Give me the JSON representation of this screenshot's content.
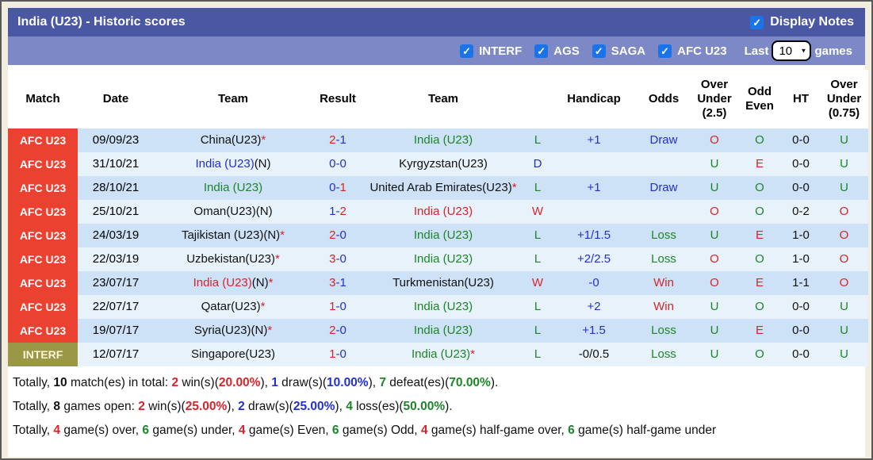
{
  "palette": {
    "title_bar_bg": "#4a58a3",
    "filter_bar_bg": "#7d88c6",
    "afc_label_bg": "#ea4130",
    "interf_label_bg": "#9a9746",
    "row_dark_bg": "#cde2f6",
    "row_light_bg": "#e7f2fb",
    "checkbox_blue": "#1a73e8",
    "text_red": "#d9232a",
    "text_blue": "#2330cc",
    "text_green": "#1d8527",
    "outer_bg": "#f1eee0"
  },
  "title_bar": {
    "title": "India (U23) - Historic scores",
    "display_notes_label": "Display Notes",
    "display_notes_checked": true
  },
  "filter_bar": {
    "checkboxes": [
      {
        "label": "INTERF",
        "checked": true
      },
      {
        "label": "AGS",
        "checked": true
      },
      {
        "label": "SAGA",
        "checked": true
      },
      {
        "label": "AFC U23",
        "checked": true
      }
    ],
    "last_label": "Last",
    "games_count": "10",
    "games_label": "games",
    "check_glyph": "✓",
    "chevron_glyph": "▼"
  },
  "table": {
    "headers": [
      {
        "key": "match",
        "label": "Match"
      },
      {
        "key": "date",
        "label": "Date"
      },
      {
        "key": "team-home",
        "label": "Team"
      },
      {
        "key": "result",
        "label": "Result"
      },
      {
        "key": "team-away",
        "label": "Team"
      },
      {
        "key": "result-letter",
        "label": ""
      },
      {
        "key": "handicap",
        "label": "Handicap"
      },
      {
        "key": "odds",
        "label": "Odds"
      },
      {
        "key": "over-under-25",
        "label": "Over Under (2.5)"
      },
      {
        "key": "odd-even",
        "label": "Odd Even"
      },
      {
        "key": "ht",
        "label": "HT"
      },
      {
        "key": "over-under-075",
        "label": "Over Under (0.75)"
      }
    ],
    "rows": [
      {
        "competition": "AFC U23",
        "type": "afc",
        "shade": "dark",
        "date": "09/09/23",
        "home": [
          {
            "t": "China(U23)",
            "c": "black"
          },
          {
            "t": "*",
            "c": "red"
          }
        ],
        "score": [
          {
            "t": "2",
            "c": "red"
          },
          {
            "t": "-1",
            "c": "blue"
          }
        ],
        "away": [
          {
            "t": "India (U23)",
            "c": "green"
          }
        ],
        "letter": {
          "t": "L",
          "c": "green"
        },
        "handicap": {
          "t": "+1",
          "c": "blue"
        },
        "odds": {
          "t": "Draw",
          "c": "blue"
        },
        "ou25": {
          "t": "O",
          "c": "red"
        },
        "oddEven": {
          "t": "O",
          "c": "green"
        },
        "ht": {
          "t": "0-0",
          "c": "black"
        },
        "ou075": {
          "t": "U",
          "c": "green"
        }
      },
      {
        "competition": "AFC U23",
        "type": "afc",
        "shade": "light",
        "date": "31/10/21",
        "home": [
          {
            "t": "India (U23)",
            "c": "blue"
          },
          {
            "t": "(N)",
            "c": "black"
          }
        ],
        "score": [
          {
            "t": "0-0",
            "c": "blue"
          }
        ],
        "away": [
          {
            "t": "Kyrgyzstan(U23)",
            "c": "black"
          }
        ],
        "letter": {
          "t": "D",
          "c": "blue"
        },
        "handicap": {
          "t": "",
          "c": "black"
        },
        "odds": {
          "t": "",
          "c": "black"
        },
        "ou25": {
          "t": "U",
          "c": "green"
        },
        "oddEven": {
          "t": "E",
          "c": "red"
        },
        "ht": {
          "t": "0-0",
          "c": "black"
        },
        "ou075": {
          "t": "U",
          "c": "green"
        }
      },
      {
        "competition": "AFC U23",
        "type": "afc",
        "shade": "dark",
        "date": "28/10/21",
        "home": [
          {
            "t": "India (U23)",
            "c": "green"
          }
        ],
        "score": [
          {
            "t": "0-",
            "c": "blue"
          },
          {
            "t": "1",
            "c": "red"
          }
        ],
        "away": [
          {
            "t": "United Arab Emirates(U23)",
            "c": "black"
          },
          {
            "t": "*",
            "c": "red"
          }
        ],
        "letter": {
          "t": "L",
          "c": "green"
        },
        "handicap": {
          "t": "+1",
          "c": "blue"
        },
        "odds": {
          "t": "Draw",
          "c": "blue"
        },
        "ou25": {
          "t": "U",
          "c": "green"
        },
        "oddEven": {
          "t": "O",
          "c": "green"
        },
        "ht": {
          "t": "0-0",
          "c": "black"
        },
        "ou075": {
          "t": "U",
          "c": "green"
        }
      },
      {
        "competition": "AFC U23",
        "type": "afc",
        "shade": "light",
        "date": "25/10/21",
        "home": [
          {
            "t": "Oman(U23)(N)",
            "c": "black"
          }
        ],
        "score": [
          {
            "t": "1-",
            "c": "blue"
          },
          {
            "t": "2",
            "c": "red"
          }
        ],
        "away": [
          {
            "t": "India (U23)",
            "c": "red"
          }
        ],
        "letter": {
          "t": "W",
          "c": "red"
        },
        "handicap": {
          "t": "",
          "c": "black"
        },
        "odds": {
          "t": "",
          "c": "black"
        },
        "ou25": {
          "t": "O",
          "c": "red"
        },
        "oddEven": {
          "t": "O",
          "c": "green"
        },
        "ht": {
          "t": "0-2",
          "c": "black"
        },
        "ou075": {
          "t": "O",
          "c": "red"
        }
      },
      {
        "competition": "AFC U23",
        "type": "afc",
        "shade": "dark",
        "date": "24/03/19",
        "home": [
          {
            "t": "Tajikistan (U23)(N)",
            "c": "black"
          },
          {
            "t": "*",
            "c": "red"
          }
        ],
        "score": [
          {
            "t": "2",
            "c": "red"
          },
          {
            "t": "-0",
            "c": "blue"
          }
        ],
        "away": [
          {
            "t": "India (U23)",
            "c": "green"
          }
        ],
        "letter": {
          "t": "L",
          "c": "green"
        },
        "handicap": {
          "t": "+1/1.5",
          "c": "blue"
        },
        "odds": {
          "t": "Loss",
          "c": "green"
        },
        "ou25": {
          "t": "U",
          "c": "green"
        },
        "oddEven": {
          "t": "E",
          "c": "red"
        },
        "ht": {
          "t": "1-0",
          "c": "black"
        },
        "ou075": {
          "t": "O",
          "c": "red"
        }
      },
      {
        "competition": "AFC U23",
        "type": "afc",
        "shade": "light",
        "date": "22/03/19",
        "home": [
          {
            "t": "Uzbekistan(U23)",
            "c": "black"
          },
          {
            "t": "*",
            "c": "red"
          }
        ],
        "score": [
          {
            "t": "3",
            "c": "red"
          },
          {
            "t": "-0",
            "c": "blue"
          }
        ],
        "away": [
          {
            "t": "India (U23)",
            "c": "green"
          }
        ],
        "letter": {
          "t": "L",
          "c": "green"
        },
        "handicap": {
          "t": "+2/2.5",
          "c": "blue"
        },
        "odds": {
          "t": "Loss",
          "c": "green"
        },
        "ou25": {
          "t": "O",
          "c": "red"
        },
        "oddEven": {
          "t": "O",
          "c": "green"
        },
        "ht": {
          "t": "1-0",
          "c": "black"
        },
        "ou075": {
          "t": "O",
          "c": "red"
        }
      },
      {
        "competition": "AFC U23",
        "type": "afc",
        "shade": "dark",
        "date": "23/07/17",
        "home": [
          {
            "t": "India (U23)",
            "c": "red"
          },
          {
            "t": "(N)",
            "c": "black"
          },
          {
            "t": "*",
            "c": "red"
          }
        ],
        "score": [
          {
            "t": "3",
            "c": "red"
          },
          {
            "t": "-1",
            "c": "blue"
          }
        ],
        "away": [
          {
            "t": "Turkmenistan(U23)",
            "c": "black"
          }
        ],
        "letter": {
          "t": "W",
          "c": "red"
        },
        "handicap": {
          "t": "-0",
          "c": "blue"
        },
        "odds": {
          "t": "Win",
          "c": "red"
        },
        "ou25": {
          "t": "O",
          "c": "red"
        },
        "oddEven": {
          "t": "E",
          "c": "red"
        },
        "ht": {
          "t": "1-1",
          "c": "black"
        },
        "ou075": {
          "t": "O",
          "c": "red"
        }
      },
      {
        "competition": "AFC U23",
        "type": "afc",
        "shade": "light",
        "date": "22/07/17",
        "home": [
          {
            "t": "Qatar(U23)",
            "c": "black"
          },
          {
            "t": "*",
            "c": "red"
          }
        ],
        "score": [
          {
            "t": "1",
            "c": "red"
          },
          {
            "t": "-0",
            "c": "blue"
          }
        ],
        "away": [
          {
            "t": "India (U23)",
            "c": "green"
          }
        ],
        "letter": {
          "t": "L",
          "c": "green"
        },
        "handicap": {
          "t": "+2",
          "c": "blue"
        },
        "odds": {
          "t": "Win",
          "c": "red"
        },
        "ou25": {
          "t": "U",
          "c": "green"
        },
        "oddEven": {
          "t": "O",
          "c": "green"
        },
        "ht": {
          "t": "0-0",
          "c": "black"
        },
        "ou075": {
          "t": "U",
          "c": "green"
        }
      },
      {
        "competition": "AFC U23",
        "type": "afc",
        "shade": "dark",
        "date": "19/07/17",
        "home": [
          {
            "t": "Syria(U23)(N)",
            "c": "black"
          },
          {
            "t": "*",
            "c": "red"
          }
        ],
        "score": [
          {
            "t": "2",
            "c": "red"
          },
          {
            "t": "-0",
            "c": "blue"
          }
        ],
        "away": [
          {
            "t": "India (U23)",
            "c": "green"
          }
        ],
        "letter": {
          "t": "L",
          "c": "green"
        },
        "handicap": {
          "t": "+1.5",
          "c": "blue"
        },
        "odds": {
          "t": "Loss",
          "c": "green"
        },
        "ou25": {
          "t": "U",
          "c": "green"
        },
        "oddEven": {
          "t": "E",
          "c": "red"
        },
        "ht": {
          "t": "0-0",
          "c": "black"
        },
        "ou075": {
          "t": "U",
          "c": "green"
        }
      },
      {
        "competition": "INTERF",
        "type": "interf",
        "shade": "light",
        "date": "12/07/17",
        "home": [
          {
            "t": "Singapore(U23)",
            "c": "black"
          }
        ],
        "score": [
          {
            "t": "1",
            "c": "red"
          },
          {
            "t": "-0",
            "c": "blue"
          }
        ],
        "away": [
          {
            "t": "India (U23)",
            "c": "green"
          },
          {
            "t": "*",
            "c": "red"
          }
        ],
        "letter": {
          "t": "L",
          "c": "green"
        },
        "handicap": {
          "t": "-0/0.5",
          "c": "black"
        },
        "odds": {
          "t": "Loss",
          "c": "green"
        },
        "ou25": {
          "t": "U",
          "c": "green"
        },
        "oddEven": {
          "t": "O",
          "c": "green"
        },
        "ht": {
          "t": "0-0",
          "c": "black"
        },
        "ou075": {
          "t": "U",
          "c": "green"
        }
      }
    ]
  },
  "footer": {
    "lines": [
      [
        {
          "t": "Totally, ",
          "c": "black"
        },
        {
          "t": "10",
          "c": "black",
          "b": 1
        },
        {
          "t": " match(es) in total: ",
          "c": "black"
        },
        {
          "t": "2",
          "c": "red",
          "b": 1
        },
        {
          "t": " win(s)(",
          "c": "black"
        },
        {
          "t": "20.00%",
          "c": "red",
          "b": 1
        },
        {
          "t": "), ",
          "c": "black"
        },
        {
          "t": "1",
          "c": "blue",
          "b": 1
        },
        {
          "t": " draw(s)(",
          "c": "black"
        },
        {
          "t": "10.00%",
          "c": "blue",
          "b": 1
        },
        {
          "t": "), ",
          "c": "black"
        },
        {
          "t": "7",
          "c": "green",
          "b": 1
        },
        {
          "t": " defeat(es)(",
          "c": "black"
        },
        {
          "t": "70.00%",
          "c": "green",
          "b": 1
        },
        {
          "t": ").",
          "c": "black"
        }
      ],
      [
        {
          "t": "Totally, ",
          "c": "black"
        },
        {
          "t": "8",
          "c": "black",
          "b": 1
        },
        {
          "t": " games open: ",
          "c": "black"
        },
        {
          "t": "2",
          "c": "red",
          "b": 1
        },
        {
          "t": " win(s)(",
          "c": "black"
        },
        {
          "t": "25.00%",
          "c": "red",
          "b": 1
        },
        {
          "t": "), ",
          "c": "black"
        },
        {
          "t": "2",
          "c": "blue",
          "b": 1
        },
        {
          "t": " draw(s)(",
          "c": "black"
        },
        {
          "t": "25.00%",
          "c": "blue",
          "b": 1
        },
        {
          "t": "), ",
          "c": "black"
        },
        {
          "t": "4",
          "c": "green",
          "b": 1
        },
        {
          "t": " loss(es)(",
          "c": "black"
        },
        {
          "t": "50.00%",
          "c": "green",
          "b": 1
        },
        {
          "t": ").",
          "c": "black"
        }
      ],
      [
        {
          "t": "Totally, ",
          "c": "black"
        },
        {
          "t": "4",
          "c": "red",
          "b": 1
        },
        {
          "t": " game(s) over, ",
          "c": "black"
        },
        {
          "t": "6",
          "c": "green",
          "b": 1
        },
        {
          "t": " game(s) under, ",
          "c": "black"
        },
        {
          "t": "4",
          "c": "red",
          "b": 1
        },
        {
          "t": " game(s) Even, ",
          "c": "black"
        },
        {
          "t": "6",
          "c": "green",
          "b": 1
        },
        {
          "t": " game(s) Odd, ",
          "c": "black"
        },
        {
          "t": "4",
          "c": "red",
          "b": 1
        },
        {
          "t": " game(s) half-game over, ",
          "c": "black"
        },
        {
          "t": "6",
          "c": "green",
          "b": 1
        },
        {
          "t": " game(s) half-game under",
          "c": "black"
        }
      ]
    ]
  }
}
